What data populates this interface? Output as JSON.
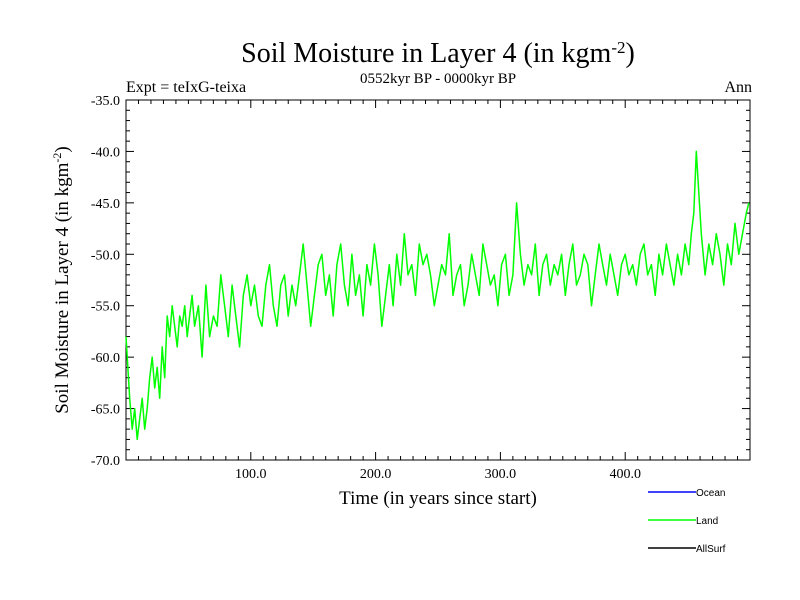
{
  "chart_data": {
    "type": "line",
    "title_main": "Soil Moisture in Layer 4 (in kgm",
    "title_sup": "-2",
    "title_end": ")",
    "subtitle_left": "Expt = teIxG-teixa",
    "subtitle_center": "0552kyr BP - 0000kyr BP",
    "subtitle_right": "Ann",
    "xlabel": "Time (in years since start)",
    "ylabel_main": "Soil Moisture in Layer 4 (in kgm",
    "ylabel_sup": "-2",
    "ylabel_end": ")",
    "xlim": [
      0,
      500
    ],
    "ylim": [
      -70,
      -35
    ],
    "xticks": [
      {
        "value": 100,
        "label": "100.0"
      },
      {
        "value": 200,
        "label": "200.0"
      },
      {
        "value": 300,
        "label": "300.0"
      },
      {
        "value": 400,
        "label": "400.0"
      }
    ],
    "yticks": [
      {
        "value": -35,
        "label": "-35.0"
      },
      {
        "value": -40,
        "label": "-40.0"
      },
      {
        "value": -45,
        "label": "-45.0"
      },
      {
        "value": -50,
        "label": "-50.0"
      },
      {
        "value": -55,
        "label": "-55.0"
      },
      {
        "value": -60,
        "label": "-60.0"
      },
      {
        "value": -65,
        "label": "-65.0"
      },
      {
        "value": -70,
        "label": "-70.0"
      }
    ],
    "legend_placement": "bottom-right",
    "series": [
      {
        "name": "Ocean",
        "color": "#0000ff",
        "x": [],
        "y": []
      },
      {
        "name": "Land",
        "color": "#00ff00",
        "x": [
          0,
          3,
          5,
          7,
          9,
          11,
          13,
          15,
          17,
          19,
          21,
          23,
          25,
          27,
          29,
          31,
          33,
          35,
          37,
          39,
          41,
          43,
          45,
          47,
          49,
          51,
          53,
          55,
          58,
          61,
          64,
          67,
          70,
          73,
          76,
          79,
          82,
          85,
          88,
          91,
          94,
          97,
          100,
          103,
          106,
          109,
          112,
          115,
          118,
          121,
          124,
          127,
          130,
          133,
          136,
          139,
          142,
          145,
          148,
          151,
          154,
          157,
          160,
          163,
          166,
          169,
          172,
          175,
          178,
          181,
          184,
          187,
          190,
          193,
          196,
          199,
          202,
          205,
          208,
          211,
          214,
          217,
          220,
          223,
          226,
          229,
          232,
          235,
          238,
          241,
          244,
          247,
          250,
          253,
          256,
          259,
          262,
          265,
          268,
          271,
          274,
          277,
          280,
          283,
          286,
          289,
          292,
          295,
          298,
          301,
          304,
          307,
          310,
          313,
          316,
          319,
          322,
          325,
          328,
          331,
          334,
          337,
          340,
          343,
          346,
          349,
          352,
          355,
          358,
          361,
          364,
          367,
          370,
          373,
          376,
          379,
          382,
          385,
          388,
          391,
          394,
          397,
          400,
          403,
          406,
          409,
          412,
          415,
          418,
          421,
          424,
          427,
          430,
          433,
          436,
          439,
          442,
          445,
          448,
          451,
          453,
          455,
          457,
          459,
          461,
          464,
          467,
          470,
          473,
          476,
          479,
          482,
          485,
          488,
          491,
          494,
          497,
          499
        ],
        "y": [
          -58,
          -64,
          -67,
          -65,
          -68,
          -66,
          -64,
          -67,
          -65,
          -62,
          -60,
          -63,
          -61,
          -64,
          -59,
          -62,
          -56,
          -58,
          -55,
          -57,
          -59,
          -56,
          -57,
          -55,
          -58,
          -56,
          -54,
          -57,
          -55,
          -60,
          -53,
          -58,
          -56,
          -57,
          -52,
          -55,
          -58,
          -53,
          -56,
          -59,
          -54,
          -52,
          -55,
          -53,
          -56,
          -57,
          -53,
          -51,
          -55,
          -57,
          -53,
          -52,
          -56,
          -53,
          -55,
          -52,
          -49,
          -53,
          -57,
          -54,
          -51,
          -50,
          -54,
          -52,
          -56,
          -51,
          -49,
          -53,
          -55,
          -50,
          -54,
          -52,
          -56,
          -51,
          -53,
          -49,
          -52,
          -57,
          -54,
          -51,
          -55,
          -50,
          -53,
          -48,
          -52,
          -51,
          -54,
          -49,
          -51,
          -50,
          -52,
          -55,
          -53,
          -51,
          -52,
          -48,
          -54,
          -52,
          -51,
          -55,
          -53,
          -50,
          -52,
          -54,
          -49,
          -51,
          -53,
          -52,
          -55,
          -51,
          -50,
          -54,
          -52,
          -45,
          -50,
          -53,
          -51,
          -52,
          -49,
          -54,
          -51,
          -50,
          -53,
          -51,
          -52,
          -50,
          -54,
          -51,
          -49,
          -53,
          -52,
          -50,
          -51,
          -55,
          -52,
          -49,
          -51,
          -53,
          -50,
          -52,
          -54,
          -51,
          -50,
          -52,
          -51,
          -53,
          -50,
          -49,
          -52,
          -51,
          -54,
          -50,
          -52,
          -49,
          -51,
          -53,
          -50,
          -52,
          -49,
          -51,
          -48,
          -46,
          -40,
          -44,
          -48,
          -52,
          -49,
          -51,
          -48,
          -50,
          -53,
          -49,
          -51,
          -47,
          -50,
          -48,
          -46,
          -45
        ]
      },
      {
        "name": "AllSurf",
        "color": "#000000",
        "x": [],
        "y": []
      }
    ]
  }
}
